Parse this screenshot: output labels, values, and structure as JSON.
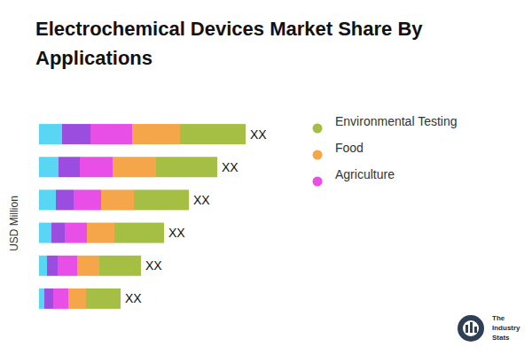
{
  "chart_data": {
    "type": "bar",
    "title": "Electrochemical Devices Market Share By Applications",
    "y_label": "USD Million",
    "orientation": "horizontal",
    "stacked": true,
    "tick_labels": false,
    "legend": "right",
    "categories": [
      null,
      null,
      null,
      null,
      null,
      null
    ],
    "xlim": [
      0,
      250
    ],
    "series": [
      {
        "color": "#5ad6f5",
        "values": [
          26,
          22,
          19,
          14,
          9,
          6
        ]
      },
      {
        "color": "#9b4de0",
        "values": [
          32,
          24,
          20,
          15,
          12,
          10
        ]
      },
      {
        "name": "Agriculture",
        "color": "#e84fe6",
        "values": [
          47,
          37,
          31,
          25,
          22,
          17
        ]
      },
      {
        "name": "Food",
        "color": "#f5a54a",
        "values": [
          54,
          49,
          37,
          31,
          25,
          20
        ]
      },
      {
        "name": "Environmental Testing",
        "color": "#a5bf45",
        "values": [
          74,
          69,
          62,
          56,
          47,
          39
        ]
      }
    ],
    "annotations": [
      "XX",
      "XX",
      "XX",
      "XX",
      "XX",
      "XX"
    ],
    "watermark": "The Industry Stats"
  }
}
